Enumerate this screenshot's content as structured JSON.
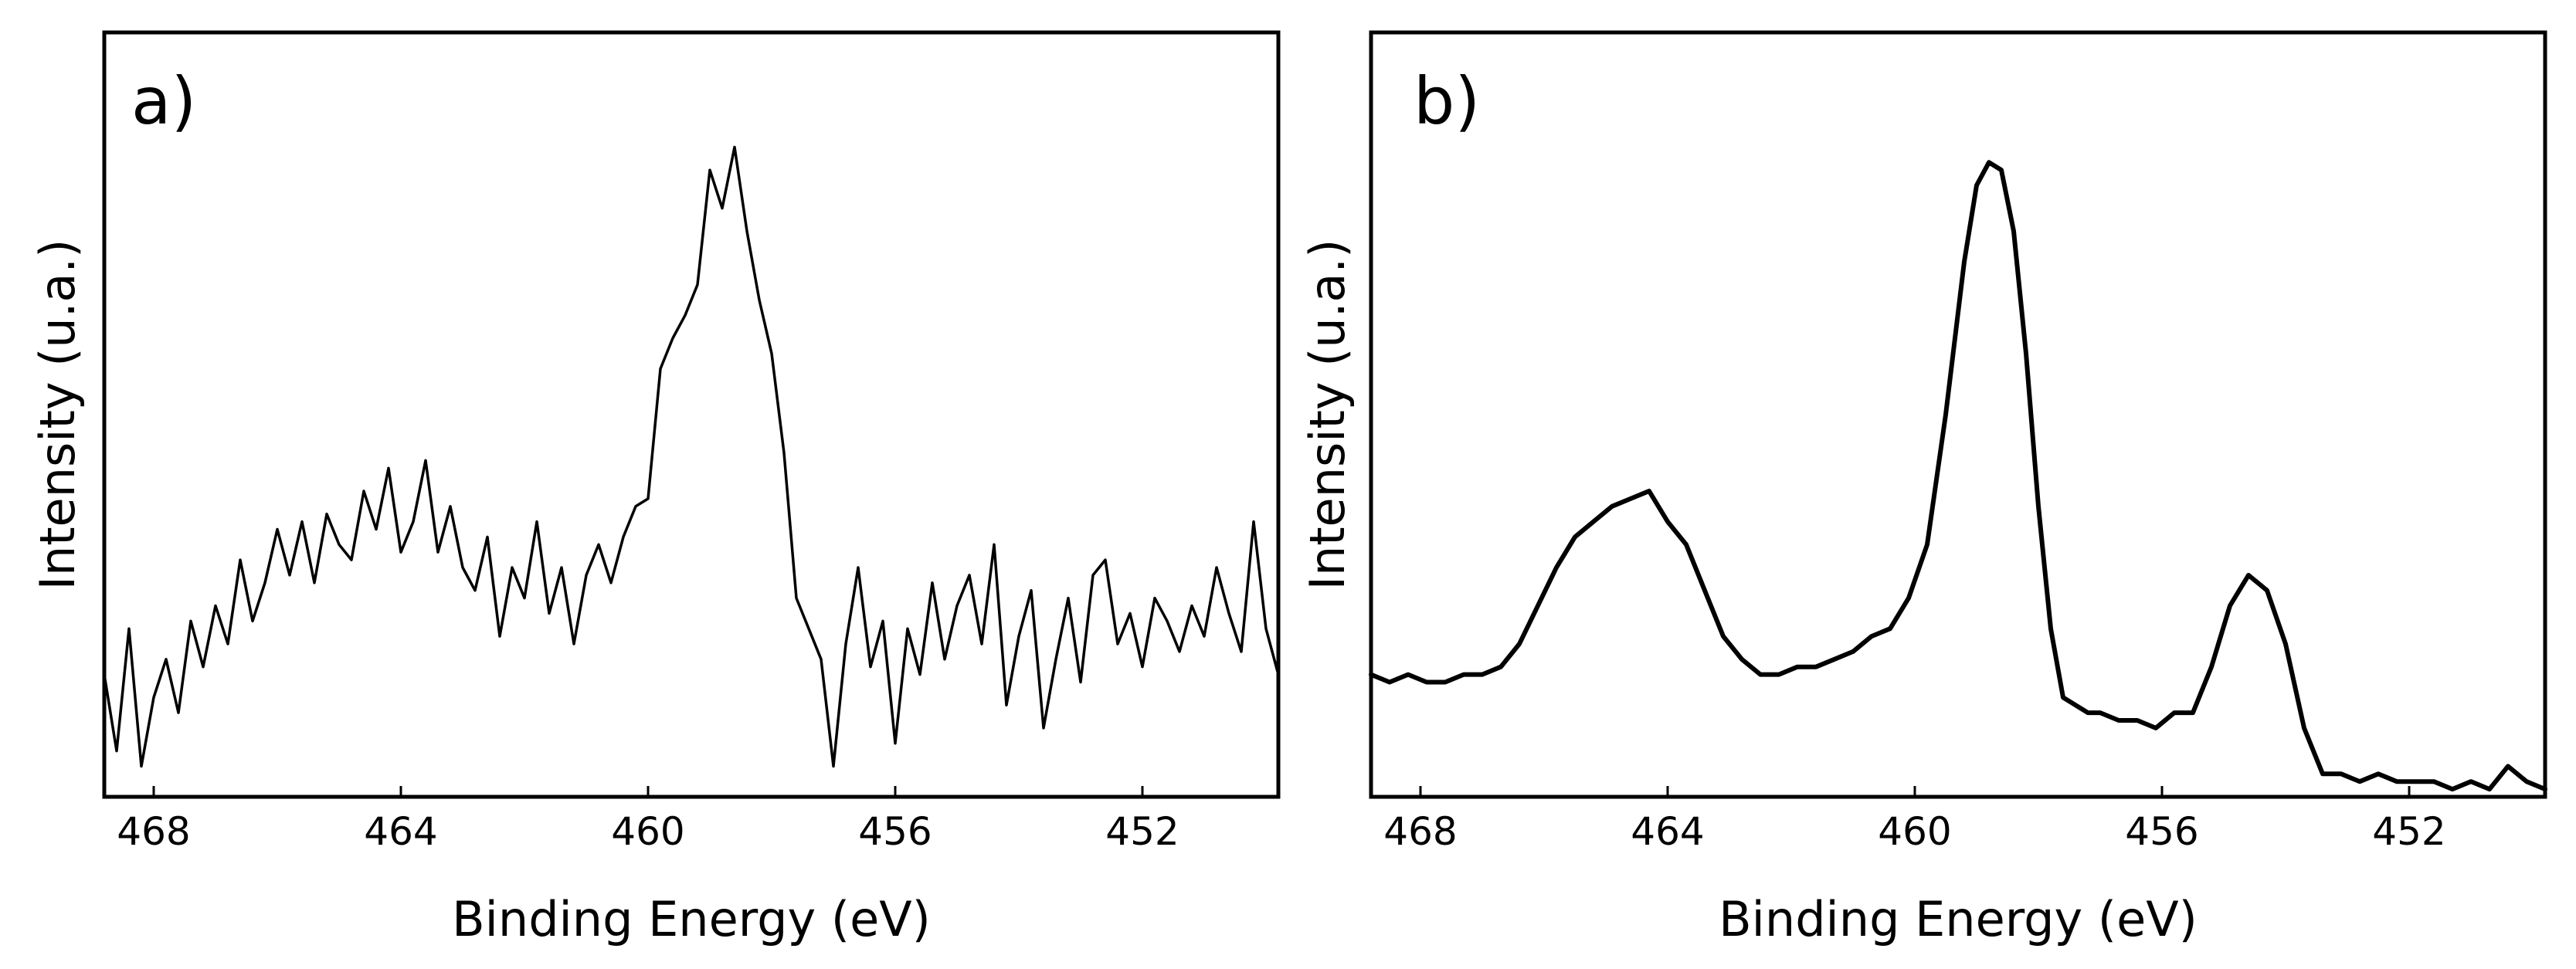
{
  "chart_data": [
    {
      "panel_label": "a)",
      "type": "line",
      "xlabel": "Binding Energy (eV)",
      "ylabel": "Intensity (u.a.)",
      "xlim": [
        468.8,
        449.8
      ],
      "ylim": [
        0,
        1
      ],
      "x_reversed": true,
      "xticks": [
        468,
        464,
        460,
        456,
        452
      ],
      "yticks": [],
      "grid": false,
      "legend": "none",
      "series": [
        {
          "x": [
            468.8,
            468.6,
            468.4,
            468.2,
            468.0,
            467.8,
            467.6,
            467.4,
            467.2,
            467.0,
            466.8,
            466.6,
            466.4,
            466.2,
            466.0,
            465.8,
            465.6,
            465.4,
            465.2,
            465.0,
            464.8,
            464.6,
            464.4,
            464.2,
            464.0,
            463.8,
            463.6,
            463.4,
            463.2,
            463.0,
            462.8,
            462.6,
            462.4,
            462.2,
            462.0,
            461.8,
            461.6,
            461.4,
            461.2,
            461.0,
            460.8,
            460.6,
            460.4,
            460.2,
            460.0,
            459.8,
            459.6,
            459.4,
            459.2,
            459.0,
            458.8,
            458.6,
            458.4,
            458.2,
            458.0,
            457.8,
            457.6,
            457.4,
            457.2,
            457.0,
            456.8,
            456.6,
            456.4,
            456.2,
            456.0,
            455.8,
            455.6,
            455.4,
            455.2,
            455.0,
            454.8,
            454.6,
            454.4,
            454.2,
            454.0,
            453.8,
            453.6,
            453.4,
            453.2,
            453.0,
            452.8,
            452.6,
            452.4,
            452.2,
            452.0,
            451.8,
            451.6,
            451.4,
            451.2,
            451.0,
            450.8,
            450.6,
            450.4,
            450.2,
            450.0,
            449.8
          ],
          "values": [
            0.16,
            0.06,
            0.22,
            0.04,
            0.13,
            0.18,
            0.11,
            0.23,
            0.17,
            0.25,
            0.2,
            0.31,
            0.23,
            0.28,
            0.35,
            0.29,
            0.36,
            0.28,
            0.37,
            0.33,
            0.31,
            0.4,
            0.35,
            0.43,
            0.32,
            0.36,
            0.44,
            0.32,
            0.38,
            0.3,
            0.27,
            0.34,
            0.21,
            0.3,
            0.26,
            0.36,
            0.24,
            0.3,
            0.2,
            0.29,
            0.33,
            0.28,
            0.34,
            0.38,
            0.39,
            0.56,
            0.6,
            0.63,
            0.67,
            0.82,
            0.77,
            0.85,
            0.74,
            0.65,
            0.58,
            0.45,
            0.26,
            0.22,
            0.18,
            0.04,
            0.2,
            0.3,
            0.17,
            0.23,
            0.07,
            0.22,
            0.16,
            0.28,
            0.18,
            0.25,
            0.29,
            0.2,
            0.33,
            0.12,
            0.21,
            0.27,
            0.09,
            0.18,
            0.26,
            0.15,
            0.29,
            0.31,
            0.2,
            0.24,
            0.17,
            0.26,
            0.23,
            0.19,
            0.25,
            0.21,
            0.3,
            0.24,
            0.19,
            0.36,
            0.22,
            0.16
          ]
        }
      ]
    },
    {
      "panel_label": "b)",
      "type": "line",
      "xlabel": "Binding Energy (eV)",
      "ylabel": "Intensity (u.a.)",
      "xlim": [
        468.8,
        449.8
      ],
      "ylim": [
        0,
        1
      ],
      "x_reversed": true,
      "xticks": [
        468,
        464,
        460,
        456,
        452
      ],
      "yticks": [],
      "grid": false,
      "legend": "none",
      "series": [
        {
          "x": [
            468.8,
            468.5,
            468.2,
            467.9,
            467.6,
            467.3,
            467.0,
            466.7,
            466.4,
            466.1,
            465.8,
            465.5,
            465.2,
            464.9,
            464.6,
            464.3,
            464.0,
            463.7,
            463.4,
            463.1,
            462.8,
            462.5,
            462.2,
            461.9,
            461.6,
            461.3,
            461.0,
            460.7,
            460.4,
            460.1,
            459.8,
            459.5,
            459.2,
            459.0,
            458.8,
            458.6,
            458.4,
            458.2,
            458.0,
            457.8,
            457.6,
            457.4,
            457.2,
            457.0,
            456.7,
            456.4,
            456.1,
            455.8,
            455.5,
            455.2,
            454.9,
            454.6,
            454.3,
            454.0,
            453.7,
            453.4,
            453.1,
            452.8,
            452.5,
            452.2,
            451.9,
            451.6,
            451.3,
            451.0,
            450.7,
            450.4,
            450.1,
            449.8
          ],
          "values": [
            0.16,
            0.15,
            0.16,
            0.15,
            0.15,
            0.16,
            0.16,
            0.17,
            0.2,
            0.25,
            0.3,
            0.34,
            0.36,
            0.38,
            0.39,
            0.4,
            0.36,
            0.33,
            0.27,
            0.21,
            0.18,
            0.16,
            0.16,
            0.17,
            0.17,
            0.18,
            0.19,
            0.21,
            0.22,
            0.26,
            0.33,
            0.5,
            0.7,
            0.8,
            0.83,
            0.82,
            0.74,
            0.58,
            0.38,
            0.22,
            0.13,
            0.12,
            0.11,
            0.11,
            0.1,
            0.1,
            0.09,
            0.11,
            0.11,
            0.17,
            0.25,
            0.29,
            0.27,
            0.2,
            0.09,
            0.03,
            0.03,
            0.02,
            0.03,
            0.02,
            0.02,
            0.02,
            0.01,
            0.02,
            0.01,
            0.04,
            0.02,
            0.01
          ]
        }
      ]
    }
  ]
}
